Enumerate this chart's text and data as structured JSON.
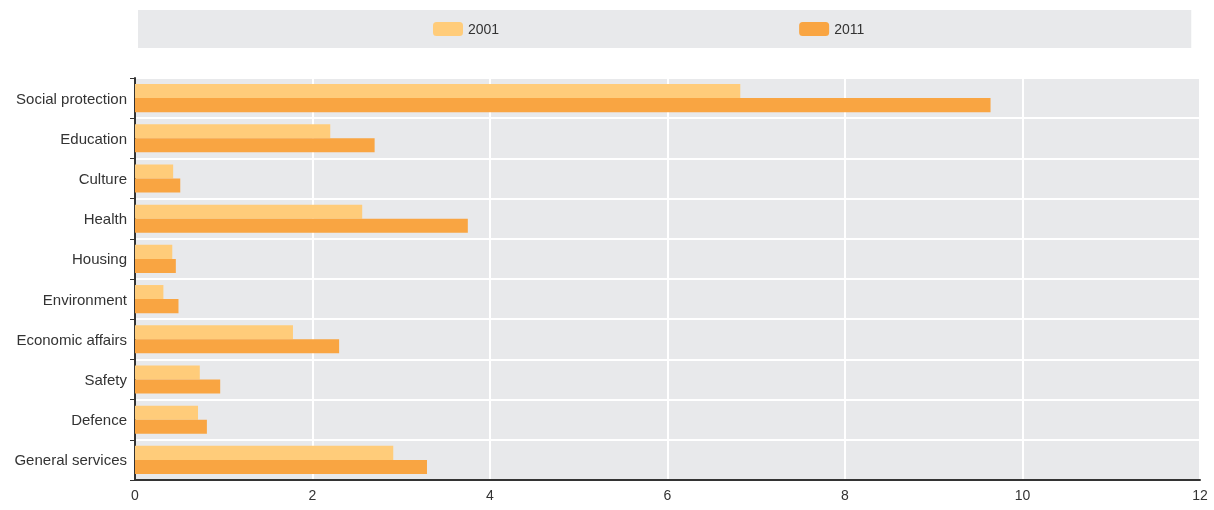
{
  "chart_data": {
    "type": "bar",
    "orientation": "horizontal",
    "categories": [
      "Social protection",
      "Education",
      "Culture",
      "Health",
      "Housing",
      "Environment",
      "Economic affairs",
      "Safety",
      "Defence",
      "General services"
    ],
    "series": [
      {
        "name": "2001",
        "color": "#ffcc7a",
        "values": [
          6.82,
          2.2,
          0.43,
          2.56,
          0.42,
          0.32,
          1.78,
          0.73,
          0.71,
          2.91
        ]
      },
      {
        "name": "2011",
        "color": "#f9a542",
        "values": [
          9.64,
          2.7,
          0.51,
          3.75,
          0.46,
          0.49,
          2.3,
          0.96,
          0.81,
          3.29
        ]
      }
    ],
    "xlim": [
      0,
      12
    ],
    "xticks": [
      0,
      2,
      4,
      6,
      8,
      10,
      12
    ],
    "grid": true,
    "legend": "top"
  }
}
